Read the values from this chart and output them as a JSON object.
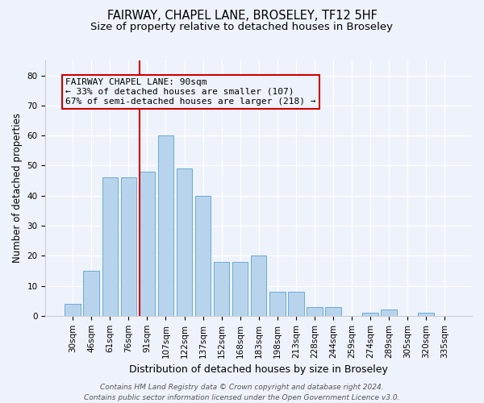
{
  "title": "FAIRWAY, CHAPEL LANE, BROSELEY, TF12 5HF",
  "subtitle": "Size of property relative to detached houses in Broseley",
  "xlabel": "Distribution of detached houses by size in Broseley",
  "ylabel": "Number of detached properties",
  "bar_labels": [
    "30sqm",
    "46sqm",
    "61sqm",
    "76sqm",
    "91sqm",
    "107sqm",
    "122sqm",
    "137sqm",
    "152sqm",
    "168sqm",
    "183sqm",
    "198sqm",
    "213sqm",
    "228sqm",
    "244sqm",
    "259sqm",
    "274sqm",
    "289sqm",
    "305sqm",
    "320sqm",
    "335sqm"
  ],
  "bar_values": [
    4,
    15,
    46,
    46,
    48,
    60,
    49,
    40,
    18,
    18,
    20,
    8,
    8,
    3,
    3,
    0,
    1,
    2,
    0,
    1,
    0
  ],
  "bar_color": "#b8d4ed",
  "bar_edge_color": "#6aaad4",
  "ylim": [
    0,
    85
  ],
  "yticks": [
    0,
    10,
    20,
    30,
    40,
    50,
    60,
    70,
    80
  ],
  "vline_index": 3.575,
  "vline_color": "#cc0000",
  "annotation_text": "FAIRWAY CHAPEL LANE: 90sqm\n← 33% of detached houses are smaller (107)\n67% of semi-detached houses are larger (218) →",
  "annotation_box_color": "#cc0000",
  "background_color": "#eef2fa",
  "footer_text": "Contains HM Land Registry data © Crown copyright and database right 2024.\nContains public sector information licensed under the Open Government Licence v3.0.",
  "title_fontsize": 10.5,
  "subtitle_fontsize": 9.5,
  "xlabel_fontsize": 9,
  "ylabel_fontsize": 8.5,
  "annotation_fontsize": 8,
  "footer_fontsize": 6.5,
  "tick_fontsize": 7.5
}
